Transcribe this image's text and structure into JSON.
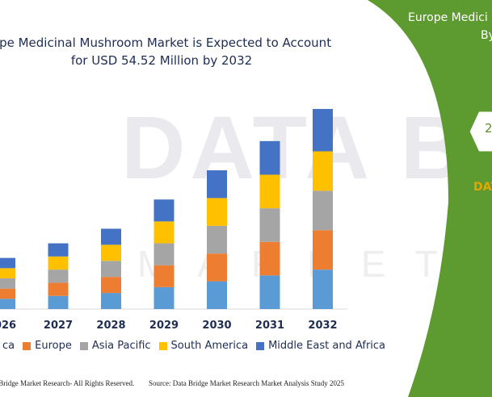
{
  "title_line1": "ope Medicinal Mushroom Market is Expected to Account",
  "title_line2": "for USD 54.52 Million by 2032",
  "watermark": "DATA BRID",
  "watermark_sub": "MARKET RESE",
  "panel": {
    "line1": "Europe Medici",
    "line2": "By",
    "hex_text": "2",
    "dat_text": "DAT"
  },
  "footer_left": "e Bridge Market Research- All Rights Reserved.",
  "footer_right": "Source: Data Bridge Market Research Market Analysis Study 2025",
  "colors": {
    "s1": "#5b9bd5",
    "s2": "#ed7d31",
    "s3": "#a5a5a5",
    "s4": "#ffc000",
    "s5": "#4472c4",
    "panel_green": "#5d9a2f",
    "title": "#1f2d52"
  },
  "chart_data": {
    "type": "bar",
    "stacked": true,
    "categories": [
      "026",
      "2027",
      "2028",
      "2029",
      "2030",
      "2031",
      "2032"
    ],
    "series": [
      {
        "name": "ca",
        "values": [
          3.5,
          4.5,
          5.5,
          7.5,
          9.5,
          11.5,
          13.5
        ]
      },
      {
        "name": "Europe",
        "values": [
          3.5,
          4.5,
          5.5,
          7.5,
          9.5,
          11.5,
          13.5
        ]
      },
      {
        "name": "Asia Pacific",
        "values": [
          3.5,
          4.5,
          5.5,
          7.5,
          9.5,
          11.5,
          13.5
        ]
      },
      {
        "name": "South America",
        "values": [
          3.5,
          4.5,
          5.5,
          7.5,
          9.5,
          11.5,
          13.5
        ]
      },
      {
        "name": "Middle East and Africa",
        "values": [
          3.5,
          4.5,
          5.5,
          7.5,
          9.5,
          11.5,
          14.5
        ]
      }
    ],
    "legend_position": "bottom",
    "grid": false
  }
}
